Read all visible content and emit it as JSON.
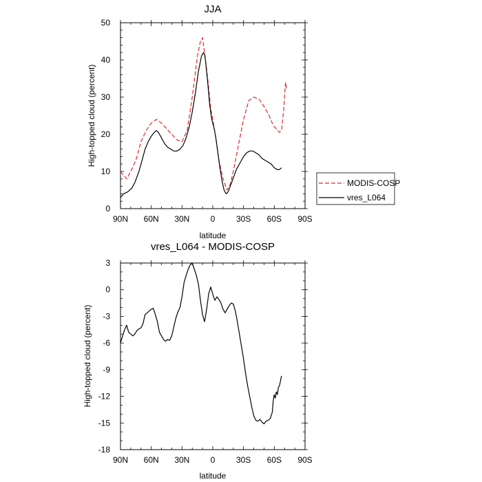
{
  "chart_data": [
    {
      "type": "line",
      "title": "JJA",
      "xlabel": "latitude",
      "ylabel": "High-topped cloud (percent)",
      "xlim": [
        -90,
        90
      ],
      "ylim": [
        0,
        50
      ],
      "x_ticks": [
        -90,
        -60,
        -30,
        0,
        30,
        60,
        90
      ],
      "x_tick_labels": [
        "90N",
        "60N",
        "30N",
        "0",
        "30S",
        "60S",
        "90S"
      ],
      "y_ticks": [
        0,
        10,
        20,
        30,
        40,
        50
      ],
      "y_tick_labels": [
        "0",
        "10",
        "20",
        "30",
        "40",
        "50"
      ],
      "legend_position": "right",
      "series": [
        {
          "name": "MODIS-COSP",
          "color": "#e8232a",
          "style": "dashed",
          "x": [
            -90,
            -84,
            -80,
            -75,
            -70,
            -65,
            -60,
            -55,
            -50,
            -45,
            -40,
            -35,
            -30,
            -25,
            -20,
            -15,
            -12,
            -10,
            -8,
            -5,
            -2,
            0,
            3,
            6,
            10,
            14,
            17,
            20,
            25,
            30,
            35,
            40,
            45,
            50,
            55,
            58,
            60,
            62,
            65,
            67,
            69,
            71,
            72
          ],
          "y": [
            10,
            8,
            10,
            13,
            18,
            21,
            23,
            24,
            23,
            21.5,
            20,
            18.5,
            18,
            21,
            30,
            41,
            45,
            46,
            42,
            35,
            27,
            24,
            19,
            13,
            8,
            5,
            6.5,
            10,
            17,
            24,
            29,
            30,
            29.5,
            27.5,
            25,
            23,
            22,
            21.5,
            20.5,
            21,
            26,
            34,
            32
          ]
        },
        {
          "name": "vres_L064",
          "color": "#000000",
          "style": "solid",
          "x": [
            -90,
            -87,
            -83,
            -79,
            -76,
            -72,
            -69,
            -66,
            -63,
            -60,
            -57,
            -55,
            -53,
            -50,
            -47,
            -44,
            -41,
            -38,
            -35,
            -32,
            -29,
            -26,
            -23,
            -20,
            -17,
            -14,
            -11,
            -9,
            -8,
            -7,
            -5,
            -3,
            -1,
            1,
            3,
            5,
            7,
            9,
            11,
            13,
            15,
            17,
            19,
            21,
            23,
            25,
            27,
            30,
            33,
            36,
            39,
            42,
            45,
            48,
            51,
            54,
            57,
            60,
            63,
            65,
            67
          ],
          "y": [
            3,
            4,
            4.5,
            5.5,
            7,
            10,
            13,
            16,
            18,
            19.5,
            20.5,
            21,
            20.5,
            19,
            17.5,
            16.5,
            16,
            15.5,
            15.5,
            16,
            17,
            19,
            22,
            26,
            31,
            37,
            41,
            42,
            41.5,
            39.5,
            34,
            28,
            24,
            22,
            19,
            15,
            11,
            7.5,
            5,
            4,
            4.5,
            6,
            7.5,
            9,
            10.5,
            11.5,
            12.5,
            14,
            15,
            15.5,
            15.5,
            15,
            14.5,
            13.5,
            13,
            12.5,
            12,
            11,
            10.5,
            10.5,
            11
          ]
        }
      ]
    },
    {
      "type": "line",
      "title": "vres_L064 - MODIS-COSP",
      "xlabel": "latitude",
      "ylabel": "High-topped cloud (percent)",
      "xlim": [
        -90,
        90
      ],
      "ylim": [
        -18,
        3
      ],
      "x_ticks": [
        -90,
        -60,
        -30,
        0,
        30,
        60,
        90
      ],
      "x_tick_labels": [
        "90N",
        "60N",
        "30N",
        "0",
        "30S",
        "60S",
        "90S"
      ],
      "y_ticks": [
        3,
        0,
        -3,
        -6,
        -9,
        -12,
        -15,
        -18
      ],
      "y_tick_labels": [
        "3",
        "0",
        "-3",
        "-6",
        "-9",
        "-12",
        "-15",
        "-18"
      ],
      "series": [
        {
          "name": "vres_L064 - MODIS-COSP",
          "color": "#000000",
          "style": "solid",
          "x": [
            -90,
            -88,
            -86,
            -84,
            -82,
            -80,
            -78,
            -76,
            -74,
            -72,
            -70,
            -68,
            -66,
            -64,
            -62,
            -60,
            -58,
            -56,
            -54,
            -52,
            -50,
            -48,
            -46,
            -44,
            -42,
            -40,
            -38,
            -36,
            -34,
            -32,
            -30,
            -28,
            -26,
            -24,
            -22,
            -20,
            -18,
            -16,
            -14,
            -12,
            -10,
            -8,
            -6,
            -4,
            -2,
            0,
            2,
            4,
            6,
            8,
            10,
            12,
            14,
            16,
            18,
            20,
            22,
            24,
            26,
            28,
            30,
            32,
            34,
            36,
            38,
            40,
            42,
            44,
            46,
            48,
            50,
            52,
            54,
            56,
            58,
            59,
            60,
            61,
            62,
            63,
            64,
            65,
            66,
            67
          ],
          "y": [
            -6,
            -5.2,
            -4.5,
            -4,
            -4.8,
            -5,
            -5.2,
            -5,
            -4.6,
            -4.4,
            -4.3,
            -3.8,
            -2.8,
            -2.6,
            -2.4,
            -2.2,
            -2.1,
            -2.8,
            -3.6,
            -4.8,
            -5.2,
            -5.6,
            -5.8,
            -5.6,
            -5.7,
            -5.2,
            -4.2,
            -3.2,
            -2.5,
            -2,
            -0.8,
            0.8,
            1.6,
            2.3,
            2.8,
            3,
            2.3,
            1.6,
            0.6,
            -1.2,
            -2.8,
            -3.6,
            -2.2,
            -0.5,
            0.3,
            -0.5,
            -1.2,
            -0.8,
            -1.1,
            -1.5,
            -2.2,
            -2.6,
            -2.2,
            -1.8,
            -1.5,
            -1.6,
            -2.4,
            -3.6,
            -5,
            -6.4,
            -7.8,
            -9.4,
            -10.8,
            -12,
            -13.2,
            -14.2,
            -14.7,
            -14.8,
            -14.6,
            -14.9,
            -15.1,
            -14.8,
            -14.7,
            -14.5,
            -13.8,
            -12.5,
            -11.8,
            -12.2,
            -11.5,
            -11.8,
            -11,
            -10.8,
            -10.3,
            -9.7
          ]
        }
      ]
    }
  ]
}
